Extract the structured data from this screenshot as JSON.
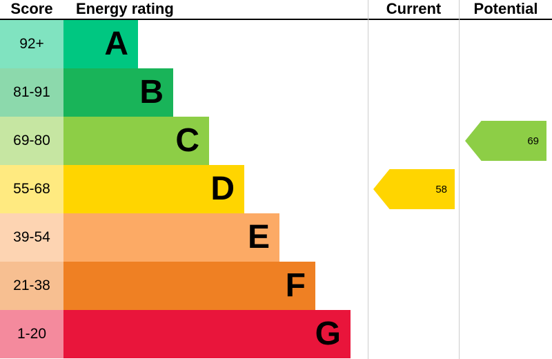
{
  "header": {
    "score_label": "Score",
    "rating_label": "Energy rating",
    "current_label": "Current",
    "potential_label": "Potential"
  },
  "chart_data": {
    "type": "epc_energy_rating_bar",
    "title": "Energy rating",
    "columns": [
      "Score",
      "Energy rating",
      "Current",
      "Potential"
    ],
    "bands": [
      {
        "letter": "A",
        "score_range": "92+",
        "color": "#00c781",
        "tint": "#80e3c0"
      },
      {
        "letter": "B",
        "score_range": "81-91",
        "color": "#19b459",
        "tint": "#8cd9ac"
      },
      {
        "letter": "C",
        "score_range": "69-80",
        "color": "#8dce46",
        "tint": "#c6e6a2"
      },
      {
        "letter": "D",
        "score_range": "55-68",
        "color": "#ffd500",
        "tint": "#ffea80"
      },
      {
        "letter": "E",
        "score_range": "39-54",
        "color": "#fcaa65",
        "tint": "#fdd4b2"
      },
      {
        "letter": "F",
        "score_range": "21-38",
        "color": "#ef8023",
        "tint": "#f7bf91"
      },
      {
        "letter": "G",
        "score_range": "1-20",
        "color": "#e9153b",
        "tint": "#f48a9d"
      }
    ],
    "current": {
      "value": 58,
      "band": "D",
      "color": "#ffd500"
    },
    "potential": {
      "value": 69,
      "band": "C",
      "color": "#8dce46"
    }
  }
}
